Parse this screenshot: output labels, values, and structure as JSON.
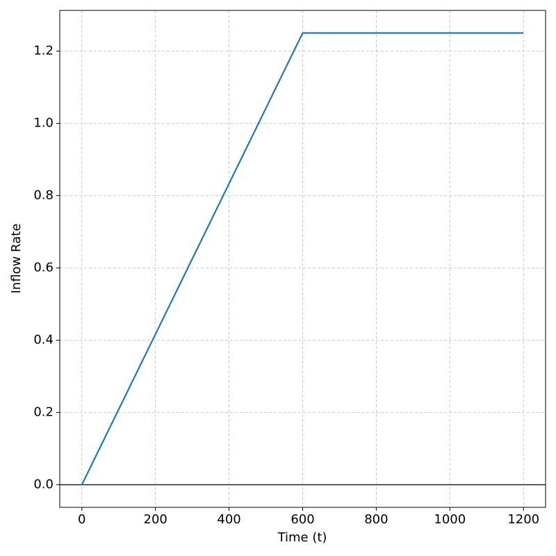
{
  "chart_data": {
    "type": "line",
    "xlabel": "Time (t)",
    "ylabel": "Inflow Rate",
    "x": [
      0,
      600,
      1200
    ],
    "series": [
      {
        "color": "#1f77b4",
        "values": [
          0,
          1.25,
          1.25
        ]
      }
    ],
    "reference_line": 0,
    "xlim": [
      -60,
      1260
    ],
    "ylim": [
      -0.0625,
      1.3125
    ],
    "xticks": [
      0,
      200,
      400,
      600,
      800,
      1000,
      1200
    ],
    "yticks": [
      {
        "value": 0,
        "label": "0.0"
      },
      0.2,
      0.4,
      0.6,
      0.8,
      {
        "value": 1,
        "label": "1.0"
      },
      1.2
    ],
    "grid": true
  }
}
